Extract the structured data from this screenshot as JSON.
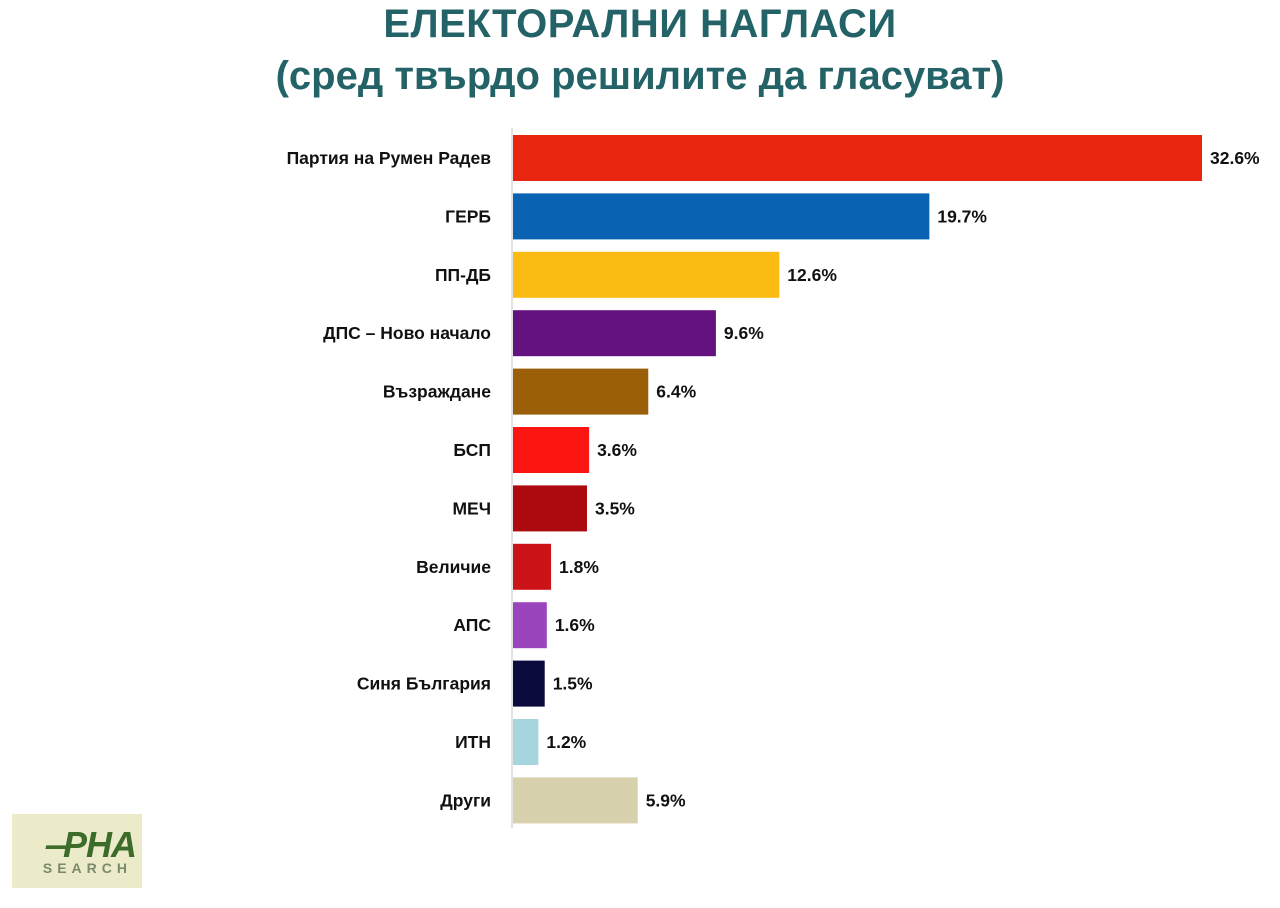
{
  "title_line1": "ЕЛЕКТОРАЛНИ НАГЛАСИ",
  "title_line2": "(сред твърдо решилите да гласуват)",
  "logo": {
    "main": "‒PHA",
    "sub": "SEARCH"
  },
  "chart_data": {
    "type": "bar",
    "orientation": "horizontal",
    "title": "ЕЛЕКТОРАЛНИ НАГЛАСИ",
    "subtitle": "(сред твърдо решилите да гласуват)",
    "categories": [
      "Партия на Румен Радев",
      "ГЕРБ",
      "ПП-ДБ",
      "ДПС – Ново начало",
      "Възраждане",
      "БСП",
      "МЕЧ",
      "Величие",
      "АПС",
      "Синя България",
      "ИТН",
      "Други"
    ],
    "values": [
      32.6,
      19.7,
      12.6,
      9.6,
      6.4,
      3.6,
      3.5,
      1.8,
      1.6,
      1.5,
      1.2,
      5.9
    ],
    "value_labels": [
      "32.6%",
      "19.7%",
      "12.6%",
      "9.6%",
      "6.4%",
      "3.6%",
      "3.5%",
      "1.8%",
      "1.6%",
      "1.5%",
      "1.2%",
      "5.9%"
    ],
    "colors": [
      "#e8260f",
      "#0a62b2",
      "#fbbb12",
      "#63127f",
      "#9b5f0a",
      "#fb1510",
      "#ad0a10",
      "#cc1418",
      "#9a44be",
      "#0b0a3c",
      "#a7d5df",
      "#d7d1ad"
    ],
    "unit": "%",
    "xlim": [
      0,
      32.6
    ],
    "grid": false,
    "legend": "none"
  }
}
